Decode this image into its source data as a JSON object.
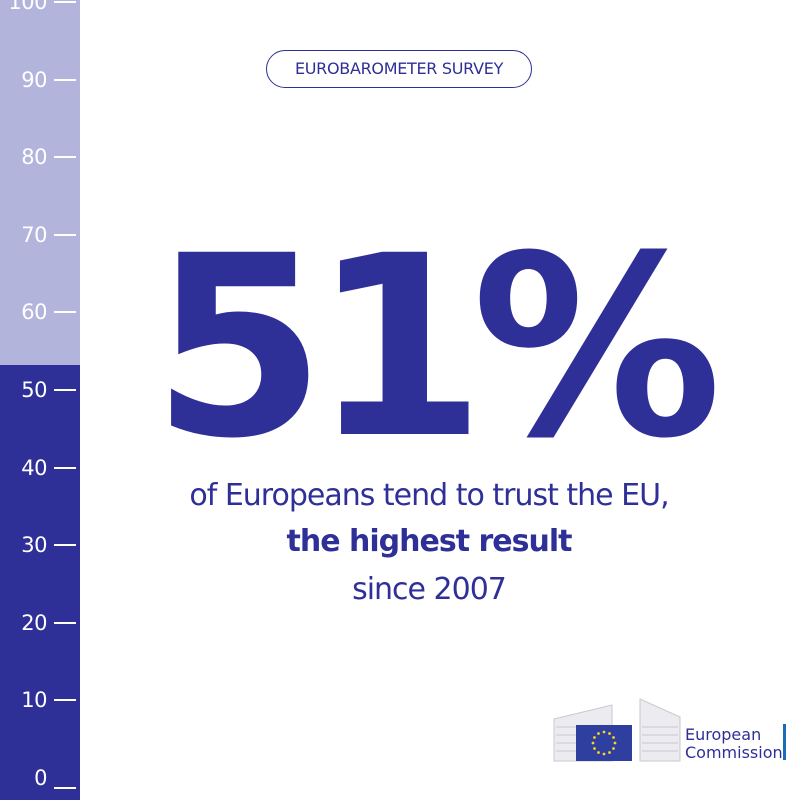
{
  "scale": {
    "labels": [
      "100",
      "90",
      "80",
      "70",
      "60",
      "50",
      "40",
      "30",
      "20",
      "10",
      "0"
    ],
    "fill_percent": 51,
    "colors": {
      "empty": "#b3b4dc",
      "filled": "#2f2f98"
    }
  },
  "header": {
    "survey_label": "EUROBAROMETER SURVEY"
  },
  "main": {
    "big_number": "51%",
    "line1": "of Europeans tend to trust the EU,",
    "line2": "the highest result",
    "line3": "since 2007"
  },
  "logo": {
    "line1": "European",
    "line2": "Commission"
  },
  "colors": {
    "brand": "#2f2f98",
    "accent_bar": "#1a6bb8"
  }
}
